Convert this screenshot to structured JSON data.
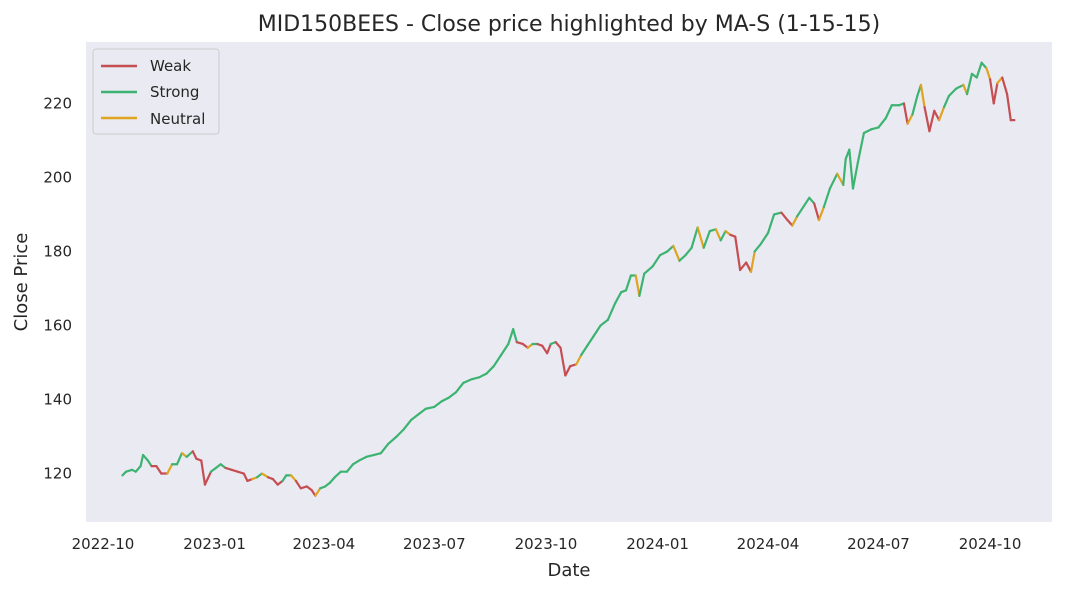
{
  "chart_data": {
    "type": "line",
    "title": "MID150BEES - Close price highlighted by MA-S (1-15-15)",
    "xlabel": "Date",
    "ylabel": "Close Price",
    "x_ticks": [
      "2022-10",
      "2023-01",
      "2023-04",
      "2023-07",
      "2023-10",
      "2024-01",
      "2024-04",
      "2024-07",
      "2024-10"
    ],
    "y_ticks": [
      120,
      140,
      160,
      180,
      200,
      220
    ],
    "xlim": [
      "2022-09-17",
      "2024-11-21"
    ],
    "ylim": [
      106.9,
      236.6
    ],
    "grid": false,
    "legend_position": "top-left",
    "series": [
      {
        "name": "Weak",
        "color": "#c44e52"
      },
      {
        "name": "Strong",
        "color": "#3cb371"
      },
      {
        "name": "Neutral",
        "color": "#e0a420"
      }
    ],
    "price_path": [
      [
        "2022-10-17",
        119.5,
        "Strong"
      ],
      [
        "2022-10-20",
        120.5,
        "Strong"
      ],
      [
        "2022-10-25",
        121,
        "Strong"
      ],
      [
        "2022-10-28",
        120.5,
        "Strong"
      ],
      [
        "2022-11-01",
        122,
        "Strong"
      ],
      [
        "2022-11-03",
        125,
        "Strong"
      ],
      [
        "2022-11-07",
        123.5,
        "Strong"
      ],
      [
        "2022-11-10",
        122,
        "Strong"
      ],
      [
        "2022-11-14",
        122,
        "Weak"
      ],
      [
        "2022-11-18",
        120,
        "Weak"
      ],
      [
        "2022-11-23",
        120,
        "Weak"
      ],
      [
        "2022-11-27",
        122.5,
        "Neutral"
      ],
      [
        "2022-12-01",
        122.5,
        "Strong"
      ],
      [
        "2022-12-05",
        125.5,
        "Strong"
      ],
      [
        "2022-12-09",
        124.5,
        "Neutral"
      ],
      [
        "2022-12-14",
        126,
        "Strong"
      ],
      [
        "2022-12-17",
        124,
        "Weak"
      ],
      [
        "2022-12-21",
        123.5,
        "Weak"
      ],
      [
        "2022-12-24",
        117,
        "Weak"
      ],
      [
        "2022-12-29",
        120.5,
        "Weak"
      ],
      [
        "2023-01-02",
        121.5,
        "Strong"
      ],
      [
        "2023-01-06",
        122.5,
        "Strong"
      ],
      [
        "2023-01-10",
        121.5,
        "Strong"
      ],
      [
        "2023-01-15",
        121,
        "Weak"
      ],
      [
        "2023-01-20",
        120.5,
        "Weak"
      ],
      [
        "2023-01-25",
        120,
        "Weak"
      ],
      [
        "2023-01-28",
        118,
        "Weak"
      ],
      [
        "2023-02-01",
        118.5,
        "Weak"
      ],
      [
        "2023-02-05",
        119,
        "Neutral"
      ],
      [
        "2023-02-09",
        120,
        "Strong"
      ],
      [
        "2023-02-14",
        119,
        "Neutral"
      ],
      [
        "2023-02-18",
        118.5,
        "Weak"
      ],
      [
        "2023-02-22",
        117,
        "Weak"
      ],
      [
        "2023-02-26",
        118,
        "Weak"
      ],
      [
        "2023-03-01",
        119.5,
        "Strong"
      ],
      [
        "2023-03-05",
        119.5,
        "Strong"
      ],
      [
        "2023-03-09",
        118,
        "Neutral"
      ],
      [
        "2023-03-13",
        116,
        "Weak"
      ],
      [
        "2023-03-18",
        116.5,
        "Weak"
      ],
      [
        "2023-03-22",
        115.5,
        "Weak"
      ],
      [
        "2023-03-25",
        114,
        "Weak"
      ],
      [
        "2023-03-29",
        116,
        "Neutral"
      ],
      [
        "2023-04-02",
        116.5,
        "Strong"
      ],
      [
        "2023-04-06",
        117.5,
        "Strong"
      ],
      [
        "2023-04-10",
        119,
        "Strong"
      ],
      [
        "2023-04-15",
        120.5,
        "Strong"
      ],
      [
        "2023-04-20",
        120.5,
        "Strong"
      ],
      [
        "2023-04-25",
        122.5,
        "Strong"
      ],
      [
        "2023-04-30",
        123.5,
        "Strong"
      ],
      [
        "2023-05-06",
        124.5,
        "Strong"
      ],
      [
        "2023-05-12",
        125,
        "Strong"
      ],
      [
        "2023-05-18",
        125.5,
        "Strong"
      ],
      [
        "2023-05-24",
        128,
        "Strong"
      ],
      [
        "2023-05-31",
        130,
        "Strong"
      ],
      [
        "2023-06-06",
        132,
        "Strong"
      ],
      [
        "2023-06-12",
        134.5,
        "Strong"
      ],
      [
        "2023-06-18",
        136,
        "Strong"
      ],
      [
        "2023-06-24",
        137.5,
        "Strong"
      ],
      [
        "2023-07-01",
        138,
        "Strong"
      ],
      [
        "2023-07-07",
        139.5,
        "Strong"
      ],
      [
        "2023-07-13",
        140.5,
        "Strong"
      ],
      [
        "2023-07-19",
        142,
        "Strong"
      ],
      [
        "2023-07-25",
        144.5,
        "Strong"
      ],
      [
        "2023-08-01",
        145.5,
        "Strong"
      ],
      [
        "2023-08-07",
        146,
        "Strong"
      ],
      [
        "2023-08-13",
        147,
        "Strong"
      ],
      [
        "2023-08-19",
        149,
        "Strong"
      ],
      [
        "2023-08-25",
        152,
        "Strong"
      ],
      [
        "2023-08-31",
        155,
        "Strong"
      ],
      [
        "2023-09-04",
        159,
        "Strong"
      ],
      [
        "2023-09-07",
        155.5,
        "Strong"
      ],
      [
        "2023-09-12",
        155,
        "Weak"
      ],
      [
        "2023-09-16",
        154,
        "Weak"
      ],
      [
        "2023-09-20",
        155,
        "Neutral"
      ],
      [
        "2023-09-24",
        155,
        "Strong"
      ],
      [
        "2023-09-28",
        154.5,
        "Weak"
      ],
      [
        "2023-10-02",
        152.5,
        "Weak"
      ],
      [
        "2023-10-05",
        155,
        "Weak"
      ],
      [
        "2023-10-09",
        155.5,
        "Strong"
      ],
      [
        "2023-10-13",
        154,
        "Weak"
      ],
      [
        "2023-10-17",
        146.5,
        "Weak"
      ],
      [
        "2023-10-21",
        149,
        "Weak"
      ],
      [
        "2023-10-26",
        149.5,
        "Weak"
      ],
      [
        "2023-10-30",
        152,
        "Neutral"
      ],
      [
        "2023-11-04",
        154.5,
        "Strong"
      ],
      [
        "2023-11-09",
        157,
        "Strong"
      ],
      [
        "2023-11-15",
        160,
        "Strong"
      ],
      [
        "2023-11-21",
        161.5,
        "Strong"
      ],
      [
        "2023-11-27",
        166,
        "Strong"
      ],
      [
        "2023-12-02",
        169,
        "Strong"
      ],
      [
        "2023-12-06",
        169.5,
        "Strong"
      ],
      [
        "2023-12-10",
        173.5,
        "Strong"
      ],
      [
        "2023-12-14",
        173.5,
        "Strong"
      ],
      [
        "2023-12-17",
        168,
        "Neutral"
      ],
      [
        "2023-12-21",
        174,
        "Strong"
      ],
      [
        "2023-12-28",
        176,
        "Strong"
      ],
      [
        "2024-01-03",
        179,
        "Strong"
      ],
      [
        "2024-01-09",
        180,
        "Strong"
      ],
      [
        "2024-01-14",
        181.5,
        "Strong"
      ],
      [
        "2024-01-19",
        177.5,
        "Neutral"
      ],
      [
        "2024-01-24",
        179,
        "Strong"
      ],
      [
        "2024-01-29",
        181,
        "Strong"
      ],
      [
        "2024-02-03",
        186.5,
        "Strong"
      ],
      [
        "2024-02-08",
        181,
        "Neutral"
      ],
      [
        "2024-02-13",
        185.5,
        "Strong"
      ],
      [
        "2024-02-18",
        186,
        "Strong"
      ],
      [
        "2024-02-22",
        183,
        "Neutral"
      ],
      [
        "2024-02-26",
        185.5,
        "Strong"
      ],
      [
        "2024-03-01",
        184.5,
        "Neutral"
      ],
      [
        "2024-03-05",
        184,
        "Weak"
      ],
      [
        "2024-03-09",
        175,
        "Weak"
      ],
      [
        "2024-03-14",
        177,
        "Weak"
      ],
      [
        "2024-03-18",
        174.5,
        "Weak"
      ],
      [
        "2024-03-21",
        180,
        "Neutral"
      ],
      [
        "2024-03-26",
        182,
        "Strong"
      ],
      [
        "2024-04-01",
        185,
        "Strong"
      ],
      [
        "2024-04-06",
        190,
        "Strong"
      ],
      [
        "2024-04-12",
        190.5,
        "Strong"
      ],
      [
        "2024-04-17",
        188.5,
        "Weak"
      ],
      [
        "2024-04-21",
        187,
        "Weak"
      ],
      [
        "2024-04-25",
        189.5,
        "Neutral"
      ],
      [
        "2024-04-30",
        192,
        "Strong"
      ],
      [
        "2024-05-05",
        194.5,
        "Strong"
      ],
      [
        "2024-05-09",
        193,
        "Strong"
      ],
      [
        "2024-05-13",
        188.5,
        "Weak"
      ],
      [
        "2024-05-17",
        192,
        "Neutral"
      ],
      [
        "2024-05-22",
        197,
        "Strong"
      ],
      [
        "2024-05-28",
        201,
        "Strong"
      ],
      [
        "2024-06-02",
        198,
        "Neutral"
      ],
      [
        "2024-06-04",
        205,
        "Strong"
      ],
      [
        "2024-06-07",
        207.5,
        "Strong"
      ],
      [
        "2024-06-10",
        197,
        "Strong"
      ],
      [
        "2024-06-14",
        204,
        "Strong"
      ],
      [
        "2024-06-19",
        212,
        "Strong"
      ],
      [
        "2024-06-25",
        213,
        "Strong"
      ],
      [
        "2024-07-01",
        213.5,
        "Strong"
      ],
      [
        "2024-07-07",
        216,
        "Strong"
      ],
      [
        "2024-07-12",
        219.5,
        "Strong"
      ],
      [
        "2024-07-18",
        219.5,
        "Strong"
      ],
      [
        "2024-07-22",
        220,
        "Strong"
      ],
      [
        "2024-07-25",
        214.5,
        "Weak"
      ],
      [
        "2024-07-29",
        217,
        "Neutral"
      ],
      [
        "2024-08-02",
        222,
        "Strong"
      ],
      [
        "2024-08-05",
        225,
        "Strong"
      ],
      [
        "2024-08-08",
        219,
        "Neutral"
      ],
      [
        "2024-08-12",
        212.5,
        "Weak"
      ],
      [
        "2024-08-16",
        218,
        "Weak"
      ],
      [
        "2024-08-20",
        215.5,
        "Weak"
      ],
      [
        "2024-08-24",
        219,
        "Neutral"
      ],
      [
        "2024-08-28",
        222,
        "Strong"
      ],
      [
        "2024-09-03",
        224,
        "Strong"
      ],
      [
        "2024-09-09",
        225,
        "Strong"
      ],
      [
        "2024-09-12",
        222.5,
        "Neutral"
      ],
      [
        "2024-09-16",
        228,
        "Strong"
      ],
      [
        "2024-09-20",
        227,
        "Strong"
      ],
      [
        "2024-09-24",
        231,
        "Strong"
      ],
      [
        "2024-09-28",
        229.5,
        "Strong"
      ],
      [
        "2024-10-01",
        226.5,
        "Neutral"
      ],
      [
        "2024-10-04",
        220,
        "Weak"
      ],
      [
        "2024-10-07",
        225.5,
        "Weak"
      ],
      [
        "2024-10-11",
        227,
        "Neutral"
      ],
      [
        "2024-10-15",
        222.5,
        "Weak"
      ],
      [
        "2024-10-18",
        215.5,
        "Weak"
      ],
      [
        "2024-10-21",
        215.5,
        "Weak"
      ]
    ]
  }
}
